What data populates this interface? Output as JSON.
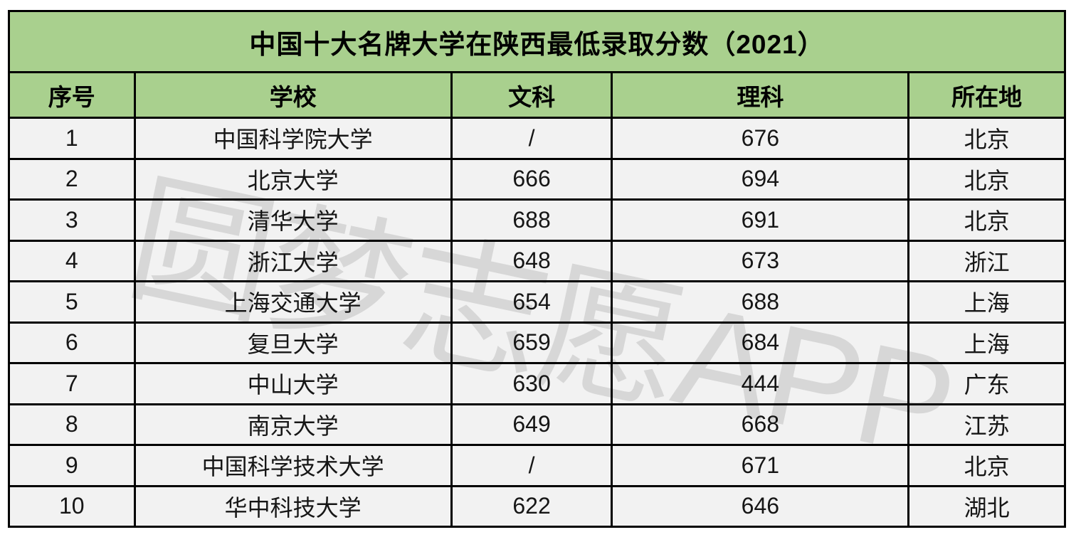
{
  "title": "中国十大名牌大学在陕西最低录取分数（2021）",
  "watermark_text": "圆梦志愿APP",
  "colors": {
    "header_green": "#a9d08e",
    "row_gray": "#f2f2f2",
    "border_black": "#000000",
    "page_white": "#ffffff"
  },
  "chart_data": {
    "type": "table",
    "title": "中国十大名牌大学在陕西最低录取分数（2021）",
    "columns": [
      "序号",
      "学校",
      "文科",
      "理科",
      "所在地"
    ],
    "rows": [
      [
        "1",
        "中国科学院大学",
        "/",
        "676",
        "北京"
      ],
      [
        "2",
        "北京大学",
        "666",
        "694",
        "北京"
      ],
      [
        "3",
        "清华大学",
        "688",
        "691",
        "北京"
      ],
      [
        "4",
        "浙江大学",
        "648",
        "673",
        "浙江"
      ],
      [
        "5",
        "上海交通大学",
        "654",
        "688",
        "上海"
      ],
      [
        "6",
        "复旦大学",
        "659",
        "684",
        "上海"
      ],
      [
        "7",
        "中山大学",
        "630",
        "444",
        "广东"
      ],
      [
        "8",
        "南京大学",
        "649",
        "668",
        "江苏"
      ],
      [
        "9",
        "中国科学技术大学",
        "/",
        "671",
        "北京"
      ],
      [
        "10",
        "华中科技大学",
        "622",
        "646",
        "湖北"
      ]
    ],
    "layout_hints": {
      "title_row_background": "#a9d08e",
      "header_row_background": "#a9d08e",
      "data_row_background": "#f2f2f2",
      "grid": "on",
      "watermark": "圆梦志愿APP"
    }
  }
}
